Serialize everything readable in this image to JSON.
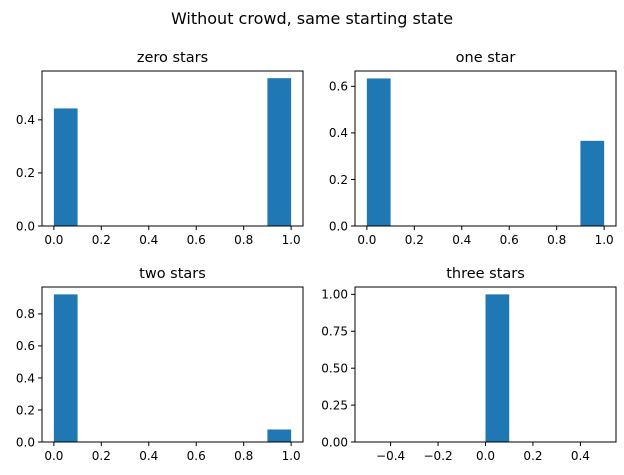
{
  "figure": {
    "suptitle": "Without crowd, same starting state"
  },
  "chart_data": [
    {
      "type": "bar",
      "title": "zero stars",
      "xlim": [
        -0.05,
        1.05
      ],
      "ylim": [
        0,
        0.584
      ],
      "xticks": [
        0.0,
        0.2,
        0.4,
        0.6,
        0.8,
        1.0
      ],
      "xticklabels": [
        "0.0",
        "0.2",
        "0.4",
        "0.6",
        "0.8",
        "1.0"
      ],
      "yticks": [
        0.0,
        0.2,
        0.4
      ],
      "yticklabels": [
        "0.0",
        "0.2",
        "0.4"
      ],
      "bars": [
        {
          "x0": 0.0,
          "x1": 0.1,
          "value": 0.443
        },
        {
          "x0": 0.9,
          "x1": 1.0,
          "value": 0.557
        }
      ]
    },
    {
      "type": "bar",
      "title": "one star",
      "xlim": [
        -0.05,
        1.05
      ],
      "ylim": [
        0,
        0.666
      ],
      "xticks": [
        0.0,
        0.2,
        0.4,
        0.6,
        0.8,
        1.0
      ],
      "xticklabels": [
        "0.0",
        "0.2",
        "0.4",
        "0.6",
        "0.8",
        "1.0"
      ],
      "yticks": [
        0.0,
        0.2,
        0.4,
        0.6
      ],
      "yticklabels": [
        "0.0",
        "0.2",
        "0.4",
        "0.6"
      ],
      "bars": [
        {
          "x0": 0.0,
          "x1": 0.1,
          "value": 0.634
        },
        {
          "x0": 0.9,
          "x1": 1.0,
          "value": 0.366
        }
      ]
    },
    {
      "type": "bar",
      "title": "two stars",
      "xlim": [
        -0.05,
        1.05
      ],
      "ylim": [
        0,
        0.968
      ],
      "xticks": [
        0.0,
        0.2,
        0.4,
        0.6,
        0.8,
        1.0
      ],
      "xticklabels": [
        "0.0",
        "0.2",
        "0.4",
        "0.6",
        "0.8",
        "1.0"
      ],
      "yticks": [
        0.0,
        0.2,
        0.4,
        0.6,
        0.8
      ],
      "yticklabels": [
        "0.0",
        "0.2",
        "0.4",
        "0.6",
        "0.8"
      ],
      "bars": [
        {
          "x0": 0.0,
          "x1": 0.1,
          "value": 0.922
        },
        {
          "x0": 0.9,
          "x1": 1.0,
          "value": 0.078
        }
      ]
    },
    {
      "type": "bar",
      "title": "three stars",
      "xlim": [
        -0.55,
        0.55
      ],
      "ylim": [
        0,
        1.05
      ],
      "xticks": [
        -0.4,
        -0.2,
        0.0,
        0.2,
        0.4
      ],
      "xticklabels": [
        "−0.4",
        "−0.2",
        "0.0",
        "0.2",
        "0.4"
      ],
      "yticks": [
        0.0,
        0.25,
        0.5,
        0.75,
        1.0
      ],
      "yticklabels": [
        "0.00",
        "0.25",
        "0.50",
        "0.75",
        "1.00"
      ],
      "bars": [
        {
          "x0": 0.0,
          "x1": 0.1,
          "value": 1.0
        }
      ]
    }
  ],
  "colors": {
    "bar": "#1f77b4",
    "axis": "#000000",
    "background": "#ffffff"
  }
}
